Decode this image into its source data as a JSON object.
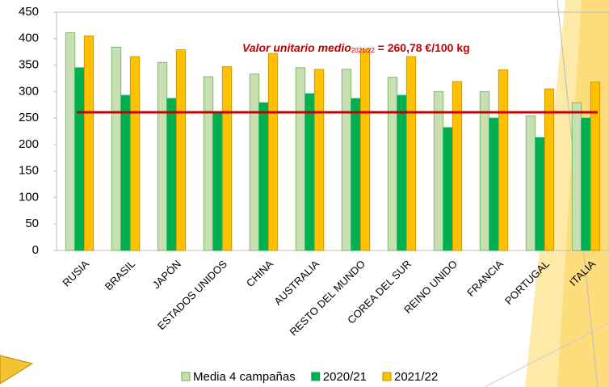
{
  "chart_data": {
    "type": "bar",
    "categories": [
      "RUSIA",
      "BRASIL",
      "JAPÓN",
      "ESTADOS UNIDOS",
      "CHINA",
      "AUSTRALIA",
      "RESTO DEL MUNDO",
      "COREA DEL SUR",
      "REINO UNIDO",
      "FRANCIA",
      "PORTUGAL",
      "ITALIA"
    ],
    "series": [
      {
        "name": "Media 4 campañas",
        "color": "#c6e0b4",
        "values": [
          411,
          384,
          355,
          328,
          333,
          345,
          342,
          327,
          300,
          300,
          254,
          279
        ]
      },
      {
        "name": "2020/21",
        "color": "#00b050",
        "values": [
          345,
          293,
          287,
          262,
          279,
          296,
          287,
          293,
          232,
          250,
          213,
          250
        ]
      },
      {
        "name": "2021/22",
        "color": "#ffc000",
        "values": [
          405,
          366,
          379,
          347,
          372,
          342,
          380,
          366,
          319,
          341,
          305,
          318
        ]
      }
    ],
    "ylim": [
      0,
      450
    ],
    "yticks": [
      0,
      50,
      100,
      150,
      200,
      250,
      300,
      350,
      400,
      450
    ],
    "reference_line": {
      "value": 260.78,
      "color": "#c00000",
      "label": "Valor unitario medio",
      "label_subscript": "2021/22",
      "label_suffix": " = 260,78 €/100 kg"
    },
    "legend": "bottom"
  }
}
